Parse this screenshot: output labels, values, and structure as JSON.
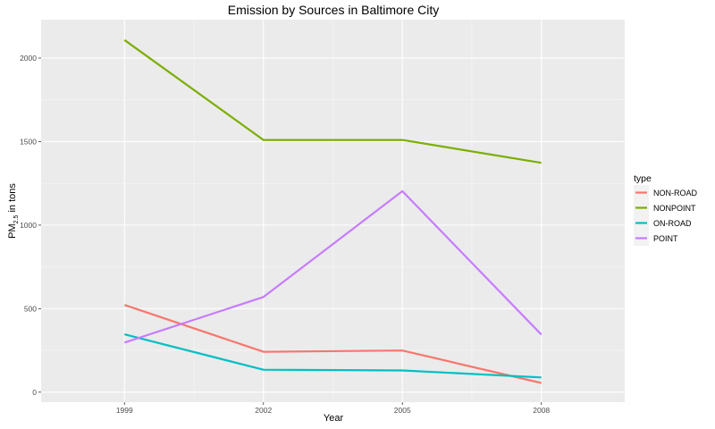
{
  "chart_data": {
    "type": "line",
    "title": "Emission by Sources in Baltimore City",
    "xlabel": "Year",
    "ylabel_main": "PM",
    "ylabel_sub": "2.5",
    "ylabel_tail": " in tons",
    "x": [
      1999,
      2002,
      2005,
      2008
    ],
    "x_tick_labels": [
      "1999",
      "2002",
      "2005",
      "2008"
    ],
    "y_ticks": [
      0,
      500,
      1000,
      1500,
      2000
    ],
    "y_tick_labels": [
      "0",
      "500",
      "1000",
      "1500",
      "2000"
    ],
    "xlim": [
      1997.2,
      2009.8
    ],
    "ylim": [
      -60,
      2230
    ],
    "grid": true,
    "legend": {
      "title": "type",
      "placement": "right"
    },
    "series": [
      {
        "name": "NON-ROAD",
        "color": "#F8766D",
        "values": [
          522,
          242,
          249,
          55
        ]
      },
      {
        "name": "NONPOINT",
        "color": "#7CAE00",
        "values": [
          2108,
          1510,
          1510,
          1373
        ]
      },
      {
        "name": "ON-ROAD",
        "color": "#00BFC4",
        "values": [
          346,
          134,
          130,
          88
        ]
      },
      {
        "name": "POINT",
        "color": "#C77CFF",
        "values": [
          297,
          570,
          1203,
          345
        ]
      }
    ]
  }
}
